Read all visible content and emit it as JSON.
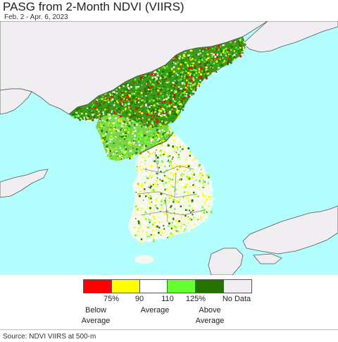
{
  "title": "PASG from 2-Month NDVI (VIIRS)",
  "subtitle": "Feb. 2 - Apr. 6, 2023",
  "legend": {
    "colors": [
      "#ff0000",
      "#ffff00",
      "#ffffff",
      "#66ff33",
      "#267300",
      "#f0eef0"
    ],
    "ticks": [
      "75%",
      "90",
      "110",
      "125%",
      "No Data"
    ],
    "categories": [
      {
        "label_line1": "Below",
        "label_line2": "Average"
      },
      {
        "label_line1": "Average",
        "label_line2": ""
      },
      {
        "label_line1": "Above",
        "label_line2": "Average"
      }
    ]
  },
  "source": "Source: NDVI VIIRS at 500-m",
  "map_colors": {
    "sea": "#b3ffff",
    "no_data_land": "#f0eef0",
    "boundary": "#555555"
  }
}
